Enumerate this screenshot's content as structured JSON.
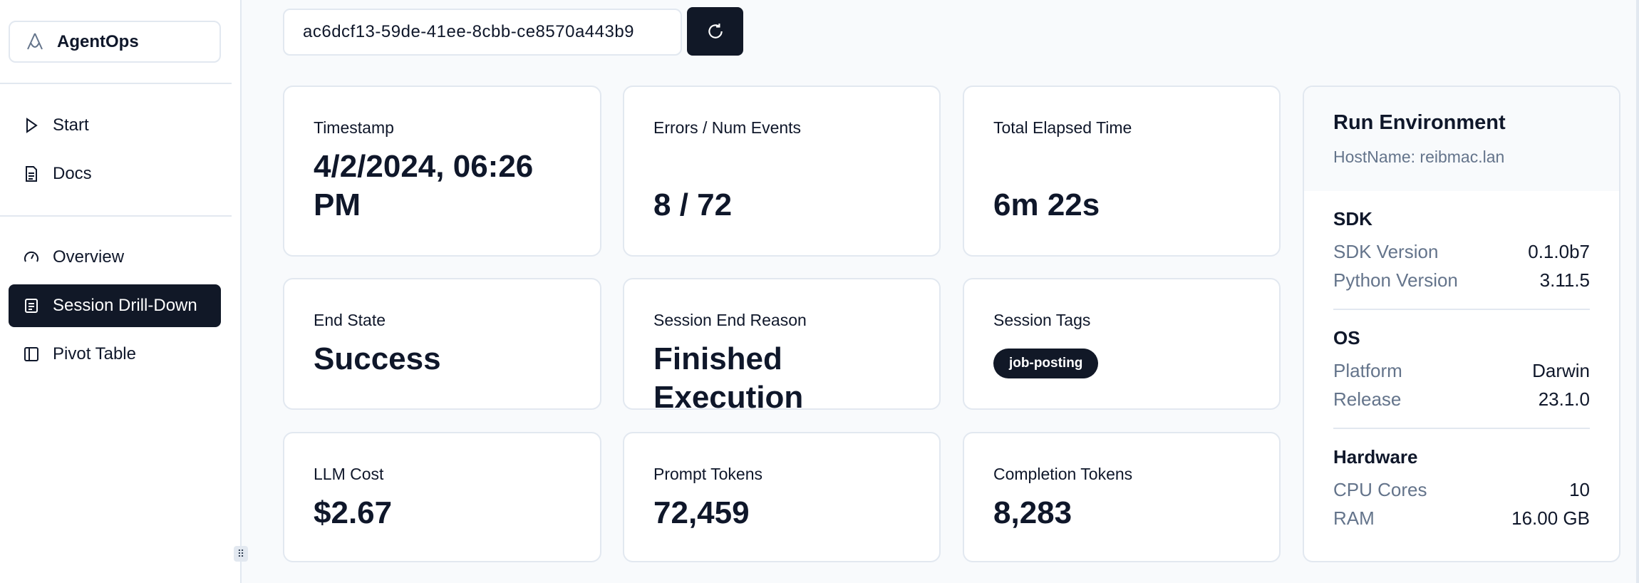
{
  "sidebar": {
    "brand": "AgentOps",
    "items": [
      {
        "label": "Start",
        "icon": "play-icon"
      },
      {
        "label": "Docs",
        "icon": "document-icon"
      },
      {
        "label": "Overview",
        "icon": "gauge-icon"
      },
      {
        "label": "Session Drill-Down",
        "icon": "list-icon",
        "active": true
      },
      {
        "label": "Pivot Table",
        "icon": "table-icon"
      }
    ]
  },
  "session": {
    "id": "ac6dcf13-59de-41ee-8cbb-ce8570a443b9",
    "refresh_icon": "refresh-icon"
  },
  "cards": [
    {
      "label": "Timestamp",
      "value": "4/2/2024, 06:26 PM"
    },
    {
      "label": "Errors / Num Events",
      "value": "8 / 72"
    },
    {
      "label": "Total Elapsed Time",
      "value": "6m 22s"
    },
    {
      "label": "End State",
      "value": "Success"
    },
    {
      "label": "Session End Reason",
      "value": "Finished Execution"
    },
    {
      "label": "Session Tags",
      "tag": "job-posting"
    },
    {
      "label": "LLM Cost",
      "value": "$2.67"
    },
    {
      "label": "Prompt Tokens",
      "value": "72,459"
    },
    {
      "label": "Completion Tokens",
      "value": "8,283"
    }
  ],
  "env": {
    "title": "Run Environment",
    "host": "HostName: reibmac.lan",
    "sections": [
      {
        "title": "SDK",
        "rows": [
          {
            "k": "SDK Version",
            "v": "0.1.0b7"
          },
          {
            "k": "Python Version",
            "v": "3.11.5"
          }
        ]
      },
      {
        "title": "OS",
        "rows": [
          {
            "k": "Platform",
            "v": "Darwin"
          },
          {
            "k": "Release",
            "v": "23.1.0"
          }
        ]
      },
      {
        "title": "Hardware",
        "rows": [
          {
            "k": "CPU Cores",
            "v": "10"
          },
          {
            "k": "RAM",
            "v": "16.00 GB"
          }
        ]
      }
    ]
  },
  "colors": {
    "accent": "#111827",
    "muted": "#64748b",
    "border": "#e2e8f0"
  }
}
